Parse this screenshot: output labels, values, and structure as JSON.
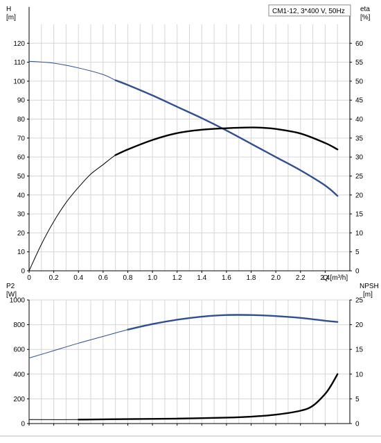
{
  "title_box": "CM1-12, 3*400 V, 50Hz",
  "chart_data": [
    {
      "type": "line",
      "panel": "top",
      "x_label": "Q [m³/h]",
      "y_left_label": [
        "H",
        "[m]"
      ],
      "y_right_label": [
        "eta",
        "[%]"
      ],
      "x_range": [
        0,
        2.6
      ],
      "x_ticks": [
        0,
        0.2,
        0.4,
        0.6,
        0.8,
        1.0,
        1.2,
        1.4,
        1.6,
        1.8,
        2.0,
        2.2,
        2.4
      ],
      "x_tick_labels": [
        "0",
        "0.2",
        "0.4",
        "0.6",
        "0.8",
        "1.0",
        "1.2",
        "1.4",
        "1.6",
        "1.8",
        "2.0",
        "2.2",
        "2.4"
      ],
      "y_left_range": [
        0,
        130
      ],
      "y_left_ticks": [
        0,
        10,
        20,
        30,
        40,
        50,
        60,
        70,
        80,
        90,
        100,
        110,
        120
      ],
      "y_right_range": [
        0,
        65
      ],
      "y_right_ticks": [
        0,
        5,
        10,
        15,
        20,
        25,
        30,
        35,
        40,
        45,
        50,
        55,
        60
      ],
      "grid": true,
      "series": [
        {
          "axis": "left",
          "color": "#2f4f8f",
          "points": [
            [
              0,
              110.5
            ],
            [
              0.2,
              109.5
            ],
            [
              0.4,
              107
            ],
            [
              0.6,
              103.5
            ],
            [
              0.7,
              100.5
            ],
            [
              0.8,
              98
            ],
            [
              1.0,
              92.5
            ],
            [
              1.2,
              86.5
            ],
            [
              1.4,
              80.5
            ],
            [
              1.6,
              74
            ],
            [
              1.8,
              67
            ],
            [
              2.0,
              60
            ],
            [
              2.2,
              53
            ],
            [
              2.4,
              45
            ],
            [
              2.5,
              39.5
            ]
          ],
          "bold_from": 0.7
        },
        {
          "axis": "right",
          "color": "#000000",
          "points": [
            [
              0,
              0
            ],
            [
              0.1,
              7
            ],
            [
              0.2,
              13
            ],
            [
              0.3,
              18
            ],
            [
              0.4,
              22
            ],
            [
              0.5,
              25.5
            ],
            [
              0.6,
              28
            ],
            [
              0.7,
              30.5
            ],
            [
              0.8,
              32
            ],
            [
              1.0,
              34.5
            ],
            [
              1.2,
              36.3
            ],
            [
              1.4,
              37.2
            ],
            [
              1.6,
              37.6
            ],
            [
              1.8,
              37.8
            ],
            [
              1.9,
              37.7
            ],
            [
              2.0,
              37.4
            ],
            [
              2.2,
              36.2
            ],
            [
              2.4,
              33.7
            ],
            [
              2.5,
              32
            ]
          ],
          "bold_from": 0.7
        }
      ]
    },
    {
      "type": "line",
      "panel": "bottom",
      "y_left_label": [
        "P2",
        "[W]"
      ],
      "y_right_label": [
        "NPSH",
        "[m]"
      ],
      "x_range": [
        0,
        2.6
      ],
      "x_ticks": [
        0,
        0.2,
        0.4,
        0.6,
        0.8,
        1.0,
        1.2,
        1.4,
        1.6,
        1.8,
        2.0,
        2.2,
        2.4
      ],
      "y_left_range": [
        0,
        1000
      ],
      "y_left_ticks": [
        0,
        200,
        400,
        600,
        800,
        1000
      ],
      "y_right_range": [
        0,
        25
      ],
      "y_right_ticks": [
        0,
        5,
        10,
        15,
        20,
        25
      ],
      "grid": true,
      "series": [
        {
          "axis": "left",
          "color": "#2f4f8f",
          "points": [
            [
              0,
              530
            ],
            [
              0.2,
              590
            ],
            [
              0.4,
              650
            ],
            [
              0.6,
              705
            ],
            [
              0.8,
              760
            ],
            [
              1.0,
              805
            ],
            [
              1.2,
              840
            ],
            [
              1.4,
              865
            ],
            [
              1.6,
              878
            ],
            [
              1.8,
              878
            ],
            [
              2.0,
              870
            ],
            [
              2.2,
              855
            ],
            [
              2.4,
              832
            ],
            [
              2.5,
              822
            ]
          ],
          "bold_from": 0.7
        },
        {
          "axis": "right",
          "color": "#000000",
          "points": [
            [
              0,
              0.8
            ],
            [
              0.4,
              0.8
            ],
            [
              0.8,
              0.9
            ],
            [
              1.2,
              1.0
            ],
            [
              1.6,
              1.2
            ],
            [
              1.8,
              1.4
            ],
            [
              2.0,
              1.8
            ],
            [
              2.2,
              2.6
            ],
            [
              2.3,
              3.6
            ],
            [
              2.4,
              6.0
            ],
            [
              2.45,
              7.8
            ],
            [
              2.5,
              10
            ]
          ],
          "bold_from": 0.3
        }
      ]
    }
  ]
}
